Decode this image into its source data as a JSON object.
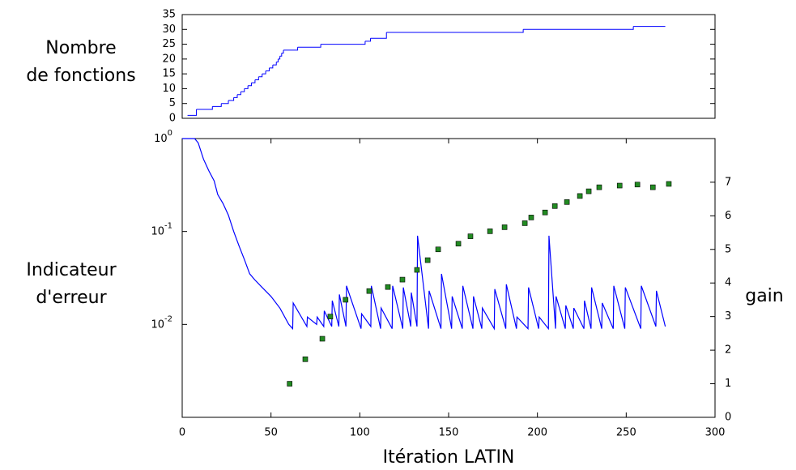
{
  "chart_data": [
    {
      "type": "line",
      "step": "post",
      "ylabel": [
        "Nombre",
        "de fonctions"
      ],
      "color": "#0000ff",
      "x": [
        3,
        8,
        17,
        22,
        26,
        29,
        31,
        33,
        35,
        37,
        39,
        41,
        43,
        45,
        47,
        49,
        51,
        53,
        54,
        55,
        56,
        57,
        65,
        78,
        103,
        106,
        115,
        192,
        254,
        272
      ],
      "values": [
        1,
        3,
        4,
        5,
        6,
        7,
        8,
        9,
        10,
        11,
        12,
        13,
        14,
        15,
        16,
        17,
        18,
        19,
        20,
        21,
        22,
        23,
        24,
        25,
        26,
        27,
        29,
        30,
        31,
        31
      ],
      "xlim": [
        0,
        300
      ],
      "ylim": [
        0,
        35
      ],
      "yticks": [
        0,
        5,
        10,
        15,
        20,
        25,
        30,
        35
      ]
    },
    {
      "type": "line",
      "log_y": true,
      "ylabel": [
        "Indicateur",
        "d'erreur"
      ],
      "y2label": "gain",
      "xlabel": "Itération LATIN",
      "xlim": [
        0,
        300
      ],
      "xticks": [
        0,
        50,
        100,
        150,
        200,
        250,
        300
      ],
      "ylim": [
        0.001,
        1
      ],
      "yticks": [
        {
          "value": 1,
          "label": "10",
          "exponent": "0"
        },
        {
          "value": 0.1,
          "label": "10",
          "exponent": "-1"
        },
        {
          "value": 0.01,
          "label": "10",
          "exponent": "-2"
        }
      ],
      "y2lim": [
        0,
        8.3
      ],
      "y2ticks": [
        0,
        1,
        2,
        3,
        4,
        5,
        6,
        7
      ],
      "series": [
        {
          "color": "#0000ff",
          "mode": "lines",
          "x": [
            0,
            7,
            9,
            12,
            15,
            18,
            20,
            23,
            26,
            29,
            32,
            35,
            38,
            41,
            45,
            50,
            55,
            60,
            62.2,
            62.5,
            70.2,
            70.5,
            75.7,
            76,
            79.7,
            80,
            84.2,
            84.5,
            88.2,
            88.5,
            92.2,
            92.5,
            100.7,
            101,
            106.2,
            106.5,
            111.7,
            112,
            118.2,
            118.5,
            124.2,
            124.5,
            128.7,
            129,
            132.2,
            132.5,
            138.7,
            139,
            145.7,
            146,
            151.7,
            152,
            157.7,
            158,
            163.7,
            164,
            168.7,
            169,
            175.7,
            176,
            182.2,
            182.5,
            188.2,
            188.5,
            194.7,
            195,
            200.7,
            201,
            206.2,
            206.5,
            210.2,
            210.5,
            215.7,
            216,
            220.2,
            220.5,
            226.2,
            226.5,
            230.2,
            230.5,
            236.2,
            236.5,
            242.7,
            243,
            249.2,
            249.5,
            258.2,
            258.5,
            266.7,
            267,
            272
          ],
          "values": [
            1,
            1,
            0.9,
            0.6,
            0.45,
            0.35,
            0.25,
            0.2,
            0.15,
            0.1,
            0.07,
            0.05,
            0.035,
            0.03,
            0.025,
            0.02,
            0.015,
            0.01,
            0.009,
            0.017,
            0.0095,
            0.012,
            0.01,
            0.012,
            0.0095,
            0.014,
            0.0095,
            0.018,
            0.0095,
            0.021,
            0.0095,
            0.026,
            0.009,
            0.013,
            0.0095,
            0.026,
            0.009,
            0.015,
            0.009,
            0.026,
            0.009,
            0.025,
            0.0095,
            0.022,
            0.0095,
            0.09,
            0.009,
            0.023,
            0.009,
            0.035,
            0.009,
            0.02,
            0.009,
            0.026,
            0.009,
            0.02,
            0.009,
            0.015,
            0.009,
            0.024,
            0.009,
            0.027,
            0.009,
            0.012,
            0.009,
            0.025,
            0.009,
            0.012,
            0.009,
            0.09,
            0.009,
            0.02,
            0.009,
            0.016,
            0.009,
            0.015,
            0.009,
            0.018,
            0.009,
            0.025,
            0.009,
            0.017,
            0.009,
            0.026,
            0.009,
            0.025,
            0.009,
            0.026,
            0.0095,
            0.023,
            0.0095
          ]
        },
        {
          "color": "#228b22",
          "mode": "markers",
          "axis": "y2",
          "x": [
            60.5,
            69.3,
            78.9,
            83.4,
            92,
            105.3,
            115.8,
            124,
            132.2,
            138.2,
            144.1,
            155.5,
            162.3,
            173.3,
            181.5,
            192.9,
            196.5,
            204.3,
            209.8,
            216.6,
            223.9,
            228.9,
            234.8,
            246.3,
            256.3,
            265,
            274
          ],
          "values": [
            1.0,
            1.73,
            2.34,
            3.0,
            3.5,
            3.76,
            3.88,
            4.1,
            4.39,
            4.68,
            5.0,
            5.17,
            5.39,
            5.54,
            5.66,
            5.78,
            5.95,
            6.1,
            6.29,
            6.41,
            6.59,
            6.73,
            6.85,
            6.9,
            6.93,
            6.85,
            6.95
          ]
        }
      ]
    }
  ]
}
